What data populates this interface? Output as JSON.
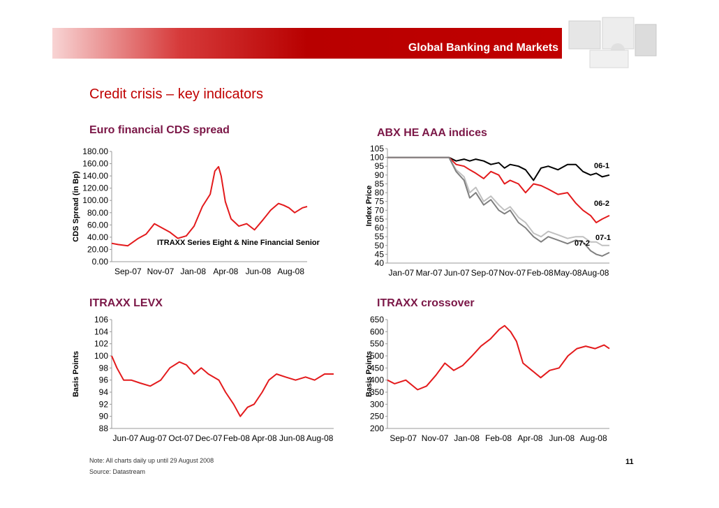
{
  "header": {
    "banner_title": "Global Banking and Markets"
  },
  "page": {
    "title": "Credit crisis – key indicators",
    "number": "11"
  },
  "footer": {
    "note": "Note: All charts daily up until 29 August 2008",
    "source": "Source: Datastream"
  },
  "colors": {
    "banner_red": "#c00000",
    "title_purple": "#7b1747",
    "series_red": "#e31a1c"
  },
  "chart_data": [
    {
      "type": "line",
      "title": "Euro financial CDS spread",
      "ylabel": "CDS Spread (in Bp)",
      "xlabel": "",
      "ylim": [
        0,
        180
      ],
      "yticks": [
        "0.00",
        "20.00",
        "40.00",
        "60.00",
        "80.00",
        "100.00",
        "120.00",
        "140.00",
        "160.00",
        "180.00"
      ],
      "xticks": [
        "Sep-07",
        "Nov-07",
        "Jan-08",
        "Apr-08",
        "Jun-08",
        "Aug-08"
      ],
      "annotation": "ITRAXX Series Eight & Nine Financial Senior",
      "x": [
        "2007-08-20",
        "2007-09-01",
        "2007-09-20",
        "2007-10-10",
        "2007-10-25",
        "2007-11-10",
        "2007-11-25",
        "2007-12-10",
        "2007-12-25",
        "2008-01-10",
        "2008-01-25",
        "2008-02-10",
        "2008-02-25",
        "2008-03-05",
        "2008-03-12",
        "2008-03-17",
        "2008-03-25",
        "2008-04-05",
        "2008-04-20",
        "2008-05-05",
        "2008-05-20",
        "2008-06-05",
        "2008-06-20",
        "2008-07-05",
        "2008-07-15",
        "2008-07-25",
        "2008-08-05",
        "2008-08-20",
        "2008-08-29"
      ],
      "series": [
        {
          "name": "",
          "color": "#e31a1c",
          "values": [
            30,
            28,
            26,
            38,
            45,
            62,
            55,
            48,
            38,
            42,
            58,
            90,
            110,
            148,
            155,
            140,
            98,
            70,
            58,
            62,
            52,
            68,
            84,
            95,
            92,
            88,
            80,
            88,
            90
          ]
        }
      ]
    },
    {
      "type": "line",
      "title": "ABX HE AAA indices",
      "ylabel": "Index Price",
      "xlabel": "",
      "ylim": [
        40,
        105
      ],
      "yticks": [
        "40",
        "45",
        "50",
        "55",
        "60",
        "65",
        "70",
        "75",
        "80",
        "85",
        "90",
        "95",
        "100",
        "105"
      ],
      "xticks": [
        "Jan-07",
        "Mar-07",
        "Jun-07",
        "Sep-07",
        "Nov-07",
        "Feb-08",
        "May-08",
        "Aug-08"
      ],
      "x": [
        "2007-01-19",
        "2007-03-01",
        "2007-05-01",
        "2007-07-01",
        "2007-07-20",
        "2007-08-10",
        "2007-08-25",
        "2007-09-10",
        "2007-10-01",
        "2007-10-20",
        "2007-11-10",
        "2007-11-25",
        "2007-12-10",
        "2008-01-01",
        "2008-01-20",
        "2008-02-10",
        "2008-03-01",
        "2008-03-20",
        "2008-04-15",
        "2008-05-10",
        "2008-06-01",
        "2008-06-20",
        "2008-07-10",
        "2008-07-25",
        "2008-08-10",
        "2008-08-29"
      ],
      "series": [
        {
          "name": "06-1",
          "color": "#000000",
          "values": [
            100,
            100,
            100,
            100,
            98,
            99,
            98,
            99,
            98,
            96,
            97,
            94,
            96,
            95,
            93,
            87,
            94,
            95,
            93,
            96,
            96,
            92,
            90,
            91,
            89,
            90
          ]
        },
        {
          "name": "06-2",
          "color": "#e31a1c",
          "values": [
            100,
            100,
            100,
            100,
            96,
            95,
            93,
            91,
            88,
            92,
            90,
            85,
            87,
            85,
            80,
            85,
            84,
            82,
            79,
            80,
            74,
            70,
            67,
            63,
            65,
            67
          ]
        },
        {
          "name": "07-1",
          "color": "#c0c0c0",
          "values": [
            100,
            100,
            100,
            100,
            93,
            89,
            80,
            83,
            75,
            78,
            73,
            70,
            72,
            66,
            63,
            57,
            55,
            58,
            56,
            54,
            55,
            55,
            52,
            52,
            50,
            50
          ]
        },
        {
          "name": "07-2",
          "color": "#7f7f7f",
          "values": [
            100,
            100,
            100,
            100,
            92,
            87,
            77,
            80,
            73,
            76,
            70,
            68,
            70,
            63,
            60,
            55,
            52,
            55,
            53,
            51,
            53,
            52,
            47,
            45,
            44,
            46
          ]
        }
      ]
    },
    {
      "type": "line",
      "title": "ITRAXX LEVX",
      "ylabel": "Basis Points",
      "xlabel": "",
      "ylim": [
        88,
        106
      ],
      "yticks": [
        "88",
        "90",
        "92",
        "94",
        "96",
        "98",
        "100",
        "102",
        "104",
        "106"
      ],
      "xticks": [
        "Jun-07",
        "Aug-07",
        "Oct-07",
        "Dec-07",
        "Feb-08",
        "Apr-08",
        "Jun-08",
        "Aug-08"
      ],
      "x": [
        "2007-05-21",
        "2007-06-01",
        "2007-06-15",
        "2007-07-01",
        "2007-07-20",
        "2007-08-10",
        "2007-09-01",
        "2007-09-20",
        "2007-10-10",
        "2007-10-25",
        "2007-11-10",
        "2007-11-25",
        "2007-12-10",
        "2008-01-01",
        "2008-01-15",
        "2008-02-01",
        "2008-02-15",
        "2008-03-01",
        "2008-03-15",
        "2008-04-01",
        "2008-04-15",
        "2008-05-01",
        "2008-05-20",
        "2008-06-10",
        "2008-07-01",
        "2008-07-20",
        "2008-08-10",
        "2008-08-29"
      ],
      "series": [
        {
          "name": "",
          "color": "#e31a1c",
          "values": [
            100,
            98,
            96,
            96,
            95.5,
            95,
            96,
            98,
            99,
            98.5,
            97,
            98,
            97,
            96,
            94,
            92,
            90,
            91.5,
            92,
            94,
            96,
            97,
            96.5,
            96,
            96.5,
            96,
            97,
            97
          ]
        }
      ]
    },
    {
      "type": "line",
      "title": "ITRAXX crossover",
      "ylabel": "Basis Points",
      "xlabel": "",
      "ylim": [
        200,
        650
      ],
      "yticks": [
        "200",
        "250",
        "300",
        "350",
        "400",
        "450",
        "500",
        "550",
        "600",
        "650"
      ],
      "xticks": [
        "Sep-07",
        "Nov-07",
        "Jan-08",
        "Feb-08",
        "Apr-08",
        "Jun-08",
        "Aug-08"
      ],
      "x": [
        "2007-08-20",
        "2007-09-01",
        "2007-09-20",
        "2007-10-10",
        "2007-10-25",
        "2007-11-10",
        "2007-11-25",
        "2007-12-10",
        "2007-12-25",
        "2008-01-10",
        "2008-01-25",
        "2008-02-10",
        "2008-02-25",
        "2008-03-05",
        "2008-03-15",
        "2008-03-25",
        "2008-04-05",
        "2008-04-20",
        "2008-05-05",
        "2008-05-20",
        "2008-06-05",
        "2008-06-20",
        "2008-07-05",
        "2008-07-20",
        "2008-08-05",
        "2008-08-20",
        "2008-08-29"
      ],
      "series": [
        {
          "name": "",
          "color": "#e31a1c",
          "values": [
            400,
            385,
            400,
            360,
            375,
            420,
            470,
            440,
            460,
            500,
            540,
            570,
            610,
            625,
            600,
            560,
            470,
            440,
            410,
            440,
            450,
            500,
            530,
            540,
            530,
            545,
            530
          ]
        }
      ]
    }
  ]
}
